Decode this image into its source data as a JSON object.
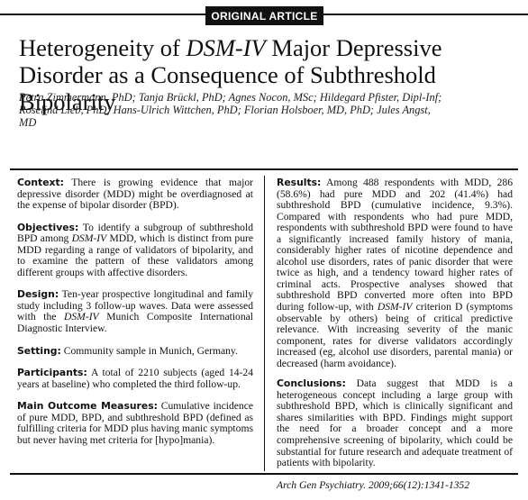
{
  "header": {
    "badge": "ORIGINAL ARTICLE"
  },
  "title": {
    "part1": "Heterogeneity of ",
    "part2_italic": "DSM-IV",
    "part3": " Major Depressive Disorder as a Consequence of Subthreshold Bipolarity"
  },
  "authors": "Petra Zimmermann, PhD; Tanja Brückl, PhD; Agnes Nocon, MSc; Hildegard Pfister, Dipl-Inf; Roselind Lieb, PhD; Hans-Ulrich Wittchen, PhD; Florian Holsboer, MD, PhD; Jules Angst, MD",
  "abstract": {
    "context": {
      "heading": "Context:",
      "text": " There is growing evidence that major depressive disorder (MDD) might be overdiagnosed at the expense of bipolar disorder (BPD)."
    },
    "objectives": {
      "heading": "Objectives:",
      "text_a": " To identify a subgroup of subthreshold BPD among ",
      "text_b_italic": "DSM-IV",
      "text_c": " MDD, which is distinct from pure MDD regarding a range of validators of bipolarity, and to examine the pattern of these validators among different groups with affective disorders."
    },
    "design": {
      "heading": "Design:",
      "text_a": " Ten-year prospective longitudinal and family study including 3 follow-up waves. Data were assessed with the ",
      "text_b_italic": "DSM-IV",
      "text_c": " Munich Composite International Diagnostic Interview."
    },
    "setting": {
      "heading": "Setting:",
      "text": " Community sample in Munich, Germany."
    },
    "participants": {
      "heading": "Participants:",
      "text": " A total of 2210 subjects (aged 14-24 years at baseline) who completed the third follow-up."
    },
    "main_outcome": {
      "heading": "Main Outcome Measures:",
      "text": " Cumulative incidence of pure MDD, BPD, and subthreshold BPD (defined as fulfilling criteria for MDD plus having manic symptoms but never having met criteria for [hypo]mania)."
    },
    "results": {
      "heading": "Results:",
      "text_a": " Among 488 respondents with MDD, 286 (58.6%) had pure MDD and 202 (41.4%) had subthreshold BPD (cumulative incidence, 9.3%). Compared with respondents who had pure MDD, respondents with subthreshold BPD were found to have a significantly increased family history of mania, considerably higher rates of nicotine dependence and alcohol use disorders, rates of panic disorder that were twice as high, and a tendency toward higher rates of criminal acts. Prospective analyses showed that subthreshold BPD converted more often into BPD during follow-up, with ",
      "text_b_italic": "DSM-IV",
      "text_c": " criterion D (symptoms observable by others) being of critical predictive relevance. With increasing severity of the manic component, rates for diverse validators accordingly increased (eg, alcohol use disorders, parental mania) or decreased (harm avoidance)."
    },
    "conclusions": {
      "heading": "Conclusions:",
      "text": " Data suggest that MDD is a heterogeneous concept including a large group with subthreshold BPD, which is clinically significant and shares similarities with BPD. Findings might support the need for a broader concept and a more comprehensive screening of bipolarity, which could be substantial for future research and adequate treatment of patients with bipolarity."
    },
    "citation": "Arch Gen Psychiatry. 2009;66(12):1341-1352"
  }
}
